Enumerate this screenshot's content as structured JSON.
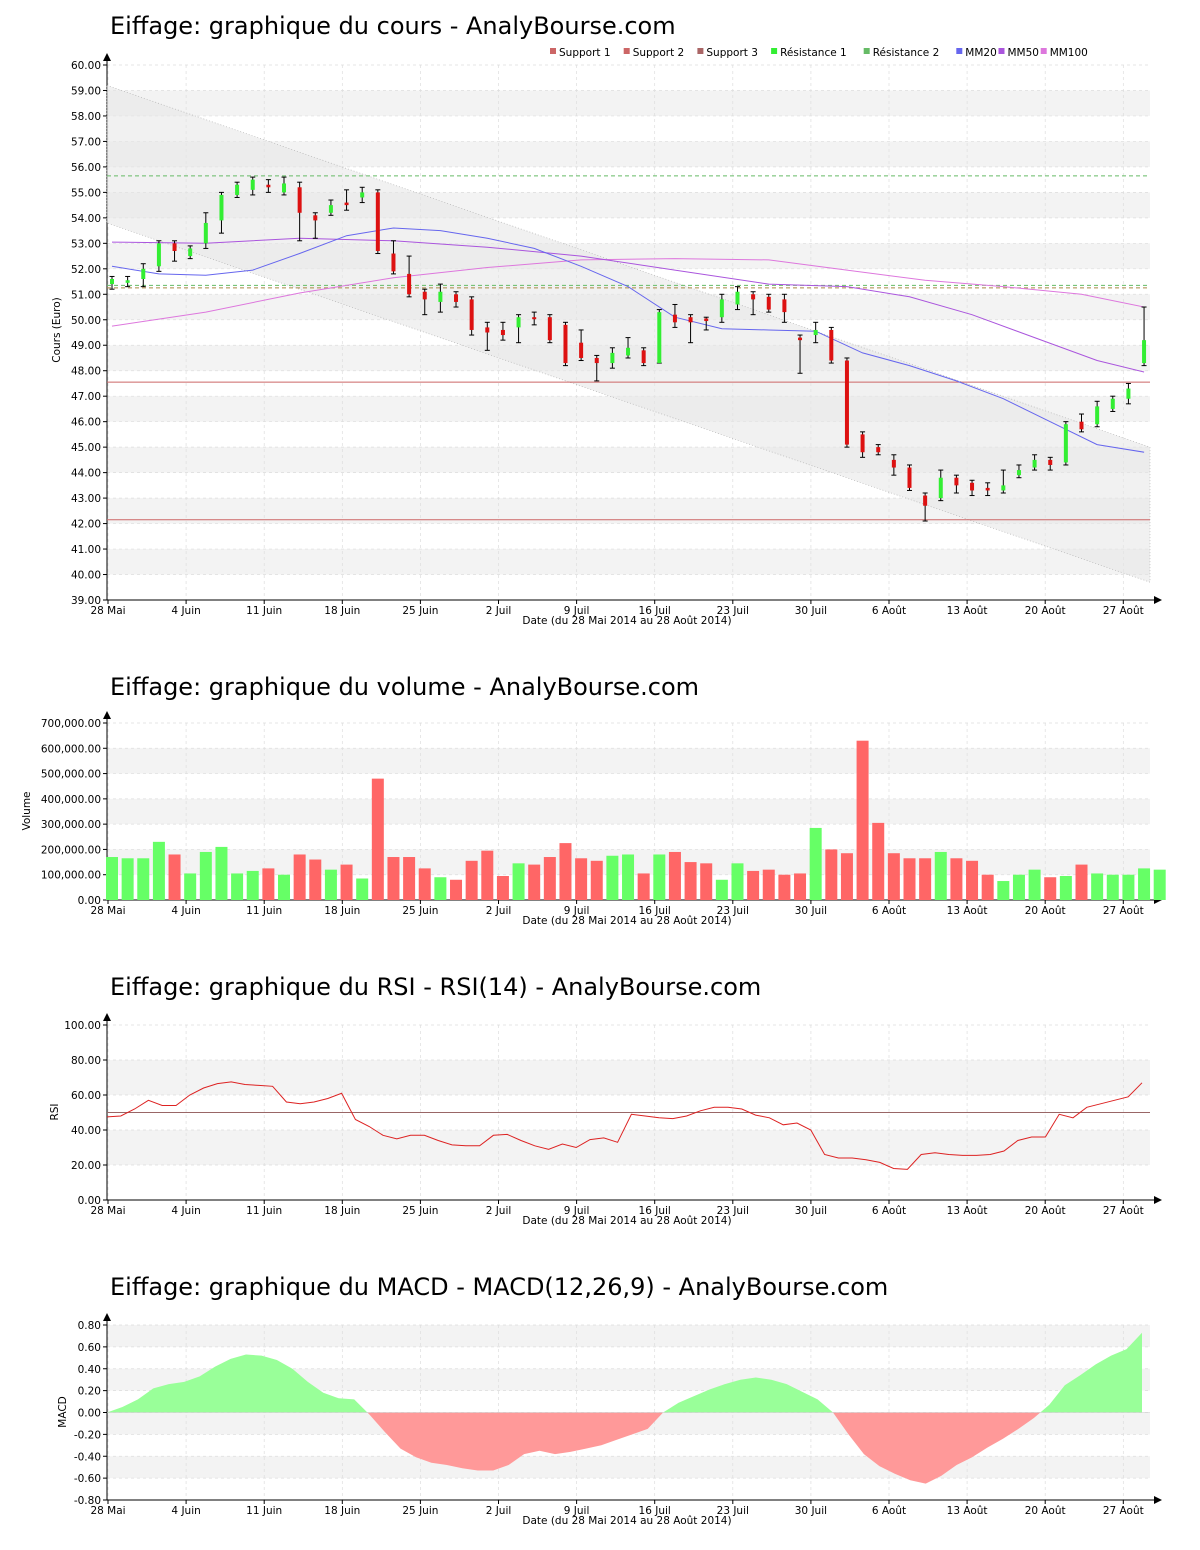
{
  "colors": {
    "up": "#33ee33",
    "down": "#dd1111",
    "vol_up": "#66ff66",
    "vol_down": "#ff6666",
    "support": "#cc6666",
    "resistance": "#66bb66",
    "mm20": "#6666ee",
    "mm50": "#aa55dd",
    "mm100": "#dd77dd",
    "rsi": "#dd2222",
    "macd_pos": "#99ff99",
    "macd_neg": "#ff9999",
    "band_light": "#f3f3f3",
    "grid": "#dddddd"
  },
  "date_axis": {
    "ticks": [
      "28 Mai",
      "4 Juin",
      "11 Juin",
      "18 Juin",
      "25 Juin",
      "2 Juil",
      "9 Juil",
      "16 Juil",
      "23 Juil",
      "30 Juil",
      "6 Août",
      "13 Août",
      "20 Août",
      "27 Août"
    ],
    "label": "Date (du 28 Mai 2014 au 28 Août 2014)"
  },
  "chart_data": [
    {
      "type": "candlestick",
      "title": "Eiffage: graphique du cours - AnalyBourse.com",
      "ylabel": "Cours (Euro)",
      "xlabel": "Date (du 28 Mai 2014 au 28 Août 2014)",
      "ylim": [
        39,
        60
      ],
      "yticks": [
        "39.00",
        "40.00",
        "41.00",
        "42.00",
        "43.00",
        "44.00",
        "45.00",
        "46.00",
        "47.00",
        "48.00",
        "49.00",
        "50.00",
        "51.00",
        "52.00",
        "53.00",
        "54.00",
        "55.00",
        "56.00",
        "57.00",
        "58.00",
        "59.00",
        "60.00"
      ],
      "legend": [
        "Support 1",
        "Support 2",
        "Support 3",
        "Résistance 1",
        "Résistance 2",
        "MM20",
        "MM50",
        "MM100"
      ],
      "legend_position": "top-right",
      "levels": {
        "support1": 47.55,
        "support2": 42.15,
        "support3": 51.25,
        "resistance1": 51.35,
        "resistance2": 55.65
      },
      "trend_channel": {
        "upper": [
          59.2,
          45.0
        ],
        "lower": [
          53.8,
          39.7
        ]
      },
      "candles": [
        {
          "o": 51.4,
          "c": 51.6,
          "h": 51.7,
          "l": 51.2
        },
        {
          "o": 51.45,
          "c": 51.55,
          "h": 51.7,
          "l": 51.3
        },
        {
          "o": 51.6,
          "c": 52.0,
          "h": 52.2,
          "l": 51.3
        },
        {
          "o": 52.1,
          "c": 53.0,
          "h": 53.1,
          "l": 51.9
        },
        {
          "o": 53.0,
          "c": 52.7,
          "h": 53.1,
          "l": 52.3
        },
        {
          "o": 52.5,
          "c": 52.8,
          "h": 52.9,
          "l": 52.4
        },
        {
          "o": 53.0,
          "c": 53.8,
          "h": 54.2,
          "l": 52.8
        },
        {
          "o": 53.9,
          "c": 54.9,
          "h": 55.0,
          "l": 53.4
        },
        {
          "o": 54.9,
          "c": 55.3,
          "h": 55.4,
          "l": 54.8
        },
        {
          "o": 55.1,
          "c": 55.5,
          "h": 55.6,
          "l": 54.9
        },
        {
          "o": 55.3,
          "c": 55.2,
          "h": 55.5,
          "l": 55.0
        },
        {
          "o": 55.0,
          "c": 55.35,
          "h": 55.6,
          "l": 54.9
        },
        {
          "o": 55.2,
          "c": 54.2,
          "h": 55.4,
          "l": 53.1
        },
        {
          "o": 54.1,
          "c": 53.9,
          "h": 54.2,
          "l": 53.2
        },
        {
          "o": 54.2,
          "c": 54.5,
          "h": 54.7,
          "l": 54.1
        },
        {
          "o": 54.6,
          "c": 54.5,
          "h": 55.1,
          "l": 54.3
        },
        {
          "o": 54.8,
          "c": 55.0,
          "h": 55.2,
          "l": 54.6
        },
        {
          "o": 55.0,
          "c": 52.7,
          "h": 55.1,
          "l": 52.6
        },
        {
          "o": 52.6,
          "c": 51.9,
          "h": 53.1,
          "l": 51.8
        },
        {
          "o": 51.8,
          "c": 51.0,
          "h": 52.5,
          "l": 50.9
        },
        {
          "o": 51.1,
          "c": 50.8,
          "h": 51.2,
          "l": 50.2
        },
        {
          "o": 50.7,
          "c": 51.1,
          "h": 51.4,
          "l": 50.3
        },
        {
          "o": 51.0,
          "c": 50.7,
          "h": 51.1,
          "l": 50.5
        },
        {
          "o": 50.8,
          "c": 49.6,
          "h": 50.9,
          "l": 49.4
        },
        {
          "o": 49.7,
          "c": 49.5,
          "h": 49.9,
          "l": 48.8
        },
        {
          "o": 49.6,
          "c": 49.4,
          "h": 49.9,
          "l": 49.2
        },
        {
          "o": 49.7,
          "c": 50.1,
          "h": 50.2,
          "l": 49.1
        },
        {
          "o": 50.1,
          "c": 50.05,
          "h": 50.3,
          "l": 49.8
        },
        {
          "o": 50.1,
          "c": 49.2,
          "h": 50.2,
          "l": 49.1
        },
        {
          "o": 49.8,
          "c": 48.3,
          "h": 49.9,
          "l": 48.2
        },
        {
          "o": 49.1,
          "c": 48.5,
          "h": 49.6,
          "l": 48.4
        },
        {
          "o": 48.5,
          "c": 48.3,
          "h": 48.6,
          "l": 47.6
        },
        {
          "o": 48.3,
          "c": 48.7,
          "h": 48.9,
          "l": 48.1
        },
        {
          "o": 48.6,
          "c": 48.9,
          "h": 49.3,
          "l": 48.5
        },
        {
          "o": 48.8,
          "c": 48.3,
          "h": 48.9,
          "l": 48.2
        },
        {
          "o": 48.3,
          "c": 50.3,
          "h": 50.4,
          "l": 48.3
        },
        {
          "o": 50.2,
          "c": 49.9,
          "h": 50.6,
          "l": 49.7
        },
        {
          "o": 50.1,
          "c": 49.9,
          "h": 50.2,
          "l": 49.1
        },
        {
          "o": 50.05,
          "c": 49.95,
          "h": 50.1,
          "l": 49.6
        },
        {
          "o": 50.1,
          "c": 50.8,
          "h": 51.0,
          "l": 49.9
        },
        {
          "o": 50.6,
          "c": 51.1,
          "h": 51.3,
          "l": 50.4
        },
        {
          "o": 51.0,
          "c": 50.8,
          "h": 51.1,
          "l": 50.2
        },
        {
          "o": 50.9,
          "c": 50.4,
          "h": 51.0,
          "l": 50.3
        },
        {
          "o": 50.8,
          "c": 50.3,
          "h": 51.0,
          "l": 49.9
        },
        {
          "o": 49.3,
          "c": 49.2,
          "h": 49.4,
          "l": 47.9
        },
        {
          "o": 49.4,
          "c": 49.6,
          "h": 49.9,
          "l": 49.1
        },
        {
          "o": 49.6,
          "c": 48.4,
          "h": 49.7,
          "l": 48.3
        },
        {
          "o": 48.4,
          "c": 45.1,
          "h": 48.5,
          "l": 45.0
        },
        {
          "o": 45.5,
          "c": 44.8,
          "h": 45.6,
          "l": 44.6
        },
        {
          "o": 45.0,
          "c": 44.8,
          "h": 45.1,
          "l": 44.7
        },
        {
          "o": 44.5,
          "c": 44.2,
          "h": 44.7,
          "l": 43.9
        },
        {
          "o": 44.2,
          "c": 43.4,
          "h": 44.3,
          "l": 43.3
        },
        {
          "o": 43.1,
          "c": 42.7,
          "h": 43.2,
          "l": 42.1
        },
        {
          "o": 43.0,
          "c": 43.8,
          "h": 44.1,
          "l": 42.9
        },
        {
          "o": 43.8,
          "c": 43.5,
          "h": 43.9,
          "l": 43.2
        },
        {
          "o": 43.6,
          "c": 43.3,
          "h": 43.7,
          "l": 43.1
        },
        {
          "o": 43.4,
          "c": 43.3,
          "h": 43.6,
          "l": 43.1
        },
        {
          "o": 43.3,
          "c": 43.5,
          "h": 44.1,
          "l": 43.2
        },
        {
          "o": 43.9,
          "c": 44.1,
          "h": 44.3,
          "l": 43.8
        },
        {
          "o": 44.2,
          "c": 44.5,
          "h": 44.7,
          "l": 44.1
        },
        {
          "o": 44.5,
          "c": 44.3,
          "h": 44.6,
          "l": 44.1
        },
        {
          "o": 44.4,
          "c": 45.9,
          "h": 46.0,
          "l": 44.3
        },
        {
          "o": 46.0,
          "c": 45.7,
          "h": 46.3,
          "l": 45.6
        },
        {
          "o": 45.9,
          "c": 46.6,
          "h": 46.8,
          "l": 45.8
        },
        {
          "o": 46.5,
          "c": 46.9,
          "h": 47.0,
          "l": 46.4
        },
        {
          "o": 46.9,
          "c": 47.3,
          "h": 47.5,
          "l": 46.7
        },
        {
          "o": 48.3,
          "c": 49.2,
          "h": 50.5,
          "l": 48.2
        }
      ],
      "mm20": [
        [
          0,
          52.1
        ],
        [
          3,
          51.8
        ],
        [
          6,
          51.75
        ],
        [
          9,
          51.95
        ],
        [
          12,
          52.6
        ],
        [
          15,
          53.3
        ],
        [
          18,
          53.6
        ],
        [
          21,
          53.5
        ],
        [
          24,
          53.2
        ],
        [
          27,
          52.8
        ],
        [
          30,
          52.1
        ],
        [
          33,
          51.3
        ],
        [
          36,
          50.1
        ],
        [
          39,
          49.65
        ],
        [
          42,
          49.6
        ],
        [
          45,
          49.55
        ],
        [
          48,
          48.7
        ],
        [
          51,
          48.2
        ],
        [
          54,
          47.6
        ],
        [
          57,
          46.9
        ],
        [
          60,
          46.0
        ],
        [
          63,
          45.1
        ],
        [
          66,
          44.8
        ]
      ],
      "mm50": [
        [
          0,
          53.05
        ],
        [
          6,
          53.0
        ],
        [
          12,
          53.2
        ],
        [
          18,
          53.1
        ],
        [
          24,
          52.85
        ],
        [
          30,
          52.5
        ],
        [
          36,
          51.95
        ],
        [
          42,
          51.4
        ],
        [
          47,
          51.3
        ],
        [
          51,
          50.9
        ],
        [
          55,
          50.2
        ],
        [
          59,
          49.3
        ],
        [
          63,
          48.4
        ],
        [
          66,
          47.95
        ]
      ],
      "mm100": [
        [
          0,
          49.75
        ],
        [
          6,
          50.3
        ],
        [
          12,
          51.05
        ],
        [
          18,
          51.65
        ],
        [
          24,
          52.05
        ],
        [
          30,
          52.35
        ],
        [
          36,
          52.4
        ],
        [
          42,
          52.35
        ],
        [
          47,
          51.95
        ],
        [
          52,
          51.55
        ],
        [
          57,
          51.3
        ],
        [
          62,
          51.0
        ],
        [
          66,
          50.5
        ]
      ]
    },
    {
      "type": "bar",
      "title": "Eiffage: graphique du volume - AnalyBourse.com",
      "ylabel": "Volume",
      "xlabel": "Date (du 28 Mai 2014 au 28 Août 2014)",
      "ylim": [
        0,
        700000
      ],
      "yticks": [
        "0.00",
        "100,000.00",
        "200,000.00",
        "300,000.00",
        "400,000.00",
        "500,000.00",
        "600,000.00",
        "700,000.00"
      ],
      "values": [
        170000,
        165000,
        165000,
        230000,
        180000,
        105000,
        190000,
        210000,
        105000,
        115000,
        125000,
        100000,
        180000,
        160000,
        120000,
        140000,
        85000,
        480000,
        170000,
        170000,
        125000,
        90000,
        80000,
        155000,
        195000,
        95000,
        145000,
        140000,
        170000,
        225000,
        165000,
        155000,
        175000,
        180000,
        105000,
        180000,
        190000,
        150000,
        145000,
        80000,
        145000,
        115000,
        120000,
        100000,
        105000,
        285000,
        200000,
        185000,
        630000,
        305000,
        185000,
        165000,
        165000,
        190000,
        165000,
        155000,
        100000,
        75000,
        100000,
        120000,
        90000,
        95000,
        140000,
        105000,
        100000,
        100000,
        125000,
        120000
      ]
    },
    {
      "type": "line",
      "title": "Eiffage: graphique du RSI - RSI(14) - AnalyBourse.com",
      "ylabel": "RSI",
      "xlabel": "Date (du 28 Mai 2014 au 28 Août 2014)",
      "ylim": [
        0,
        100
      ],
      "yticks": [
        "0.00",
        "20.00",
        "40.00",
        "60.00",
        "80.00",
        "100.00"
      ],
      "reference_line": 50,
      "values": [
        47.5,
        48,
        52,
        57,
        54,
        54,
        60,
        64,
        66.5,
        67.5,
        66,
        65.5,
        65,
        56,
        55,
        56,
        58,
        61,
        46,
        42,
        37,
        35,
        37,
        37,
        34,
        31.5,
        31,
        31,
        37,
        37.5,
        34,
        31,
        29,
        32,
        30,
        34.5,
        35.5,
        33,
        49,
        48,
        47,
        46.5,
        48,
        51,
        53,
        53,
        52,
        48.5,
        47,
        43,
        44,
        40,
        26,
        24,
        24,
        23,
        21.5,
        18,
        17.5,
        26,
        27,
        26,
        25.5,
        25.5,
        26,
        28,
        34,
        36,
        36,
        49,
        47,
        53,
        55,
        57,
        59,
        67
      ]
    },
    {
      "type": "area",
      "title": "Eiffage: graphique du MACD - MACD(12,26,9) - AnalyBourse.com",
      "ylabel": "MACD",
      "xlabel": "Date (du 28 Mai 2014 au 28 Août 2014)",
      "ylim": [
        -0.8,
        0.8
      ],
      "yticks": [
        "-0.80",
        "-0.60",
        "-0.40",
        "-0.20",
        "0.00",
        "0.20",
        "0.40",
        "0.60",
        "0.80"
      ],
      "values": [
        0.0,
        0.05,
        0.12,
        0.22,
        0.26,
        0.28,
        0.33,
        0.42,
        0.49,
        0.53,
        0.52,
        0.48,
        0.4,
        0.28,
        0.18,
        0.13,
        0.12,
        -0.02,
        -0.18,
        -0.33,
        -0.41,
        -0.46,
        -0.48,
        -0.51,
        -0.53,
        -0.53,
        -0.48,
        -0.38,
        -0.35,
        -0.38,
        -0.36,
        -0.33,
        -0.3,
        -0.25,
        -0.2,
        -0.15,
        0.0,
        0.09,
        0.15,
        0.21,
        0.26,
        0.3,
        0.32,
        0.3,
        0.26,
        0.19,
        0.12,
        0.0,
        -0.2,
        -0.38,
        -0.49,
        -0.56,
        -0.62,
        -0.65,
        -0.58,
        -0.48,
        -0.41,
        -0.32,
        -0.24,
        -0.15,
        -0.05,
        0.07,
        0.25,
        0.34,
        0.44,
        0.52,
        0.58,
        0.73
      ]
    }
  ]
}
